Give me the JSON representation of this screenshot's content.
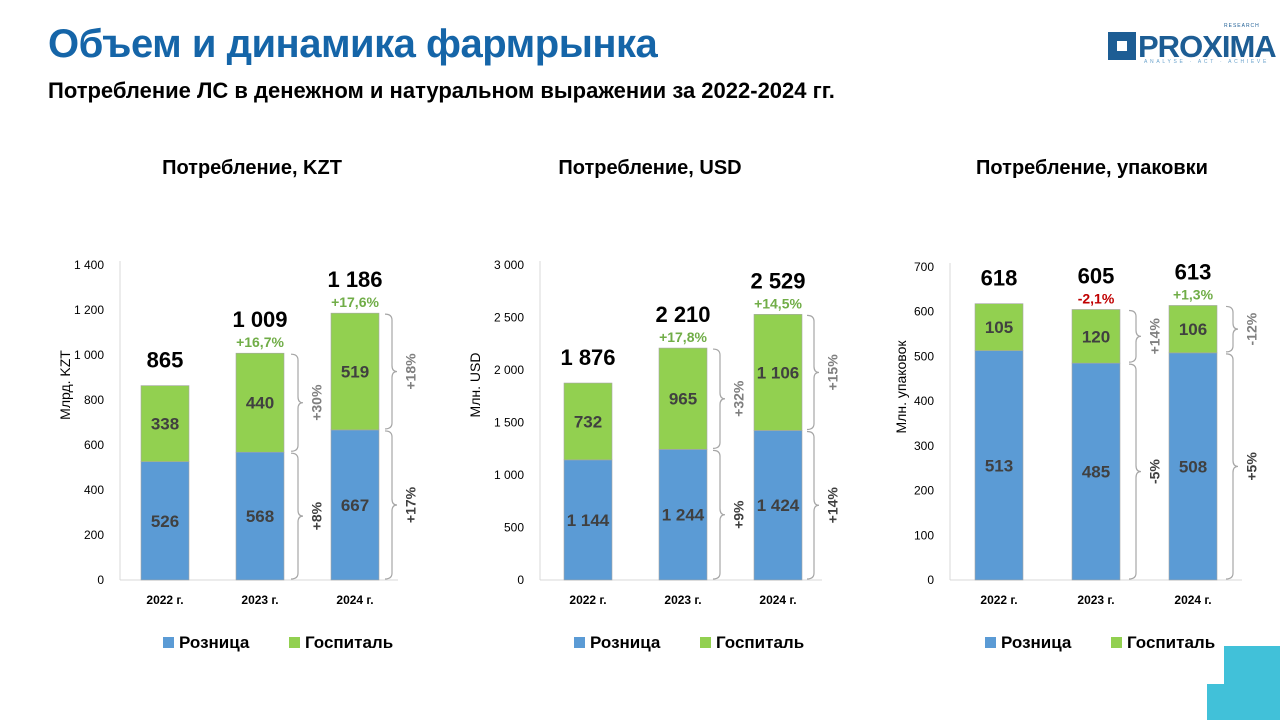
{
  "header": {
    "title": "Объем и динамика фармрынка",
    "subtitle": "Потребление ЛС в денежном и натуральном выражении за 2022-2024 гг."
  },
  "logo": {
    "word": "PROXIMA",
    "tagline": "ANALYSE · ACT · ACHIEVE",
    "small": "RESEARCH"
  },
  "colors": {
    "retail": "#5b9bd5",
    "hospital": "#92d050",
    "title": "#1565a8",
    "growth_positive": "#70ad47",
    "growth_negative": "#c00000",
    "bracket_text_green": "#7f7f7f",
    "bracket_text_blue": "#404040"
  },
  "chart_data": [
    {
      "type": "bar",
      "stacked": true,
      "title": "Потребление, KZT",
      "ylabel": "Млрд. KZT",
      "ylim": [
        0,
        1400
      ],
      "yticks": [
        "0",
        "200",
        "400",
        "600",
        "800",
        "1 000",
        "1 200",
        "1 400"
      ],
      "categories": [
        "2022 г.",
        "2023 г.",
        "2024 г."
      ],
      "series": [
        {
          "name": "Розница",
          "values": [
            526,
            568,
            667
          ],
          "labels": [
            "526",
            "568",
            "667"
          ]
        },
        {
          "name": "Госпиталь",
          "values": [
            338,
            440,
            519
          ],
          "labels": [
            "338",
            "440",
            "519"
          ]
        }
      ],
      "totals": [
        "865",
        "1 009",
        "1 186"
      ],
      "total_growth": [
        null,
        "+16,7%",
        "+17,6%"
      ],
      "segment_growth": {
        "Розница": [
          null,
          "+8%",
          "+17%"
        ],
        "Госпиталь": [
          null,
          "+30%",
          "+18%"
        ]
      },
      "legend": [
        "Розница",
        "Госпиталь"
      ]
    },
    {
      "type": "bar",
      "stacked": true,
      "title": "Потребление, USD",
      "ylabel": "Млн. USD",
      "ylim": [
        0,
        3000
      ],
      "yticks": [
        "0",
        "500",
        "1 000",
        "1 500",
        "2 000",
        "2 500",
        "3 000"
      ],
      "categories": [
        "2022 г.",
        "2023 г.",
        "2024 г."
      ],
      "series": [
        {
          "name": "Розница",
          "values": [
            1144,
            1244,
            1424
          ],
          "labels": [
            "1 144",
            "1 244",
            "1 424"
          ]
        },
        {
          "name": "Госпиталь",
          "values": [
            732,
            965,
            1106
          ],
          "labels": [
            "732",
            "965",
            "1 106"
          ]
        }
      ],
      "totals": [
        "1 876",
        "2 210",
        "2 529"
      ],
      "total_growth": [
        null,
        "+17,8%",
        "+14,5%"
      ],
      "segment_growth": {
        "Розница": [
          null,
          "+9%",
          "+14%"
        ],
        "Госпиталь": [
          null,
          "+32%",
          "+15%"
        ]
      },
      "legend": [
        "Розница",
        "Госпиталь"
      ]
    },
    {
      "type": "bar",
      "stacked": true,
      "title": "Потребление, упаковки",
      "ylabel": "Млн. упаковок",
      "ylim": [
        0,
        700
      ],
      "yticks": [
        "0",
        "100",
        "200",
        "300",
        "400",
        "500",
        "600",
        "700"
      ],
      "categories": [
        "2022 г.",
        "2023 г.",
        "2024 г."
      ],
      "series": [
        {
          "name": "Розница",
          "values": [
            513,
            485,
            508
          ],
          "labels": [
            "513",
            "485",
            "508"
          ]
        },
        {
          "name": "Госпиталь",
          "values": [
            105,
            120,
            106
          ],
          "labels": [
            "105",
            "120",
            "106"
          ]
        }
      ],
      "totals": [
        "618",
        "605",
        "613"
      ],
      "total_growth": [
        null,
        "-2,1%",
        "+1,3%"
      ],
      "segment_growth": {
        "Розница": [
          null,
          "-5%",
          "+5%"
        ],
        "Госпиталь": [
          null,
          "+14%",
          "-12%"
        ]
      },
      "legend": [
        "Розница",
        "Госпиталь"
      ]
    }
  ]
}
